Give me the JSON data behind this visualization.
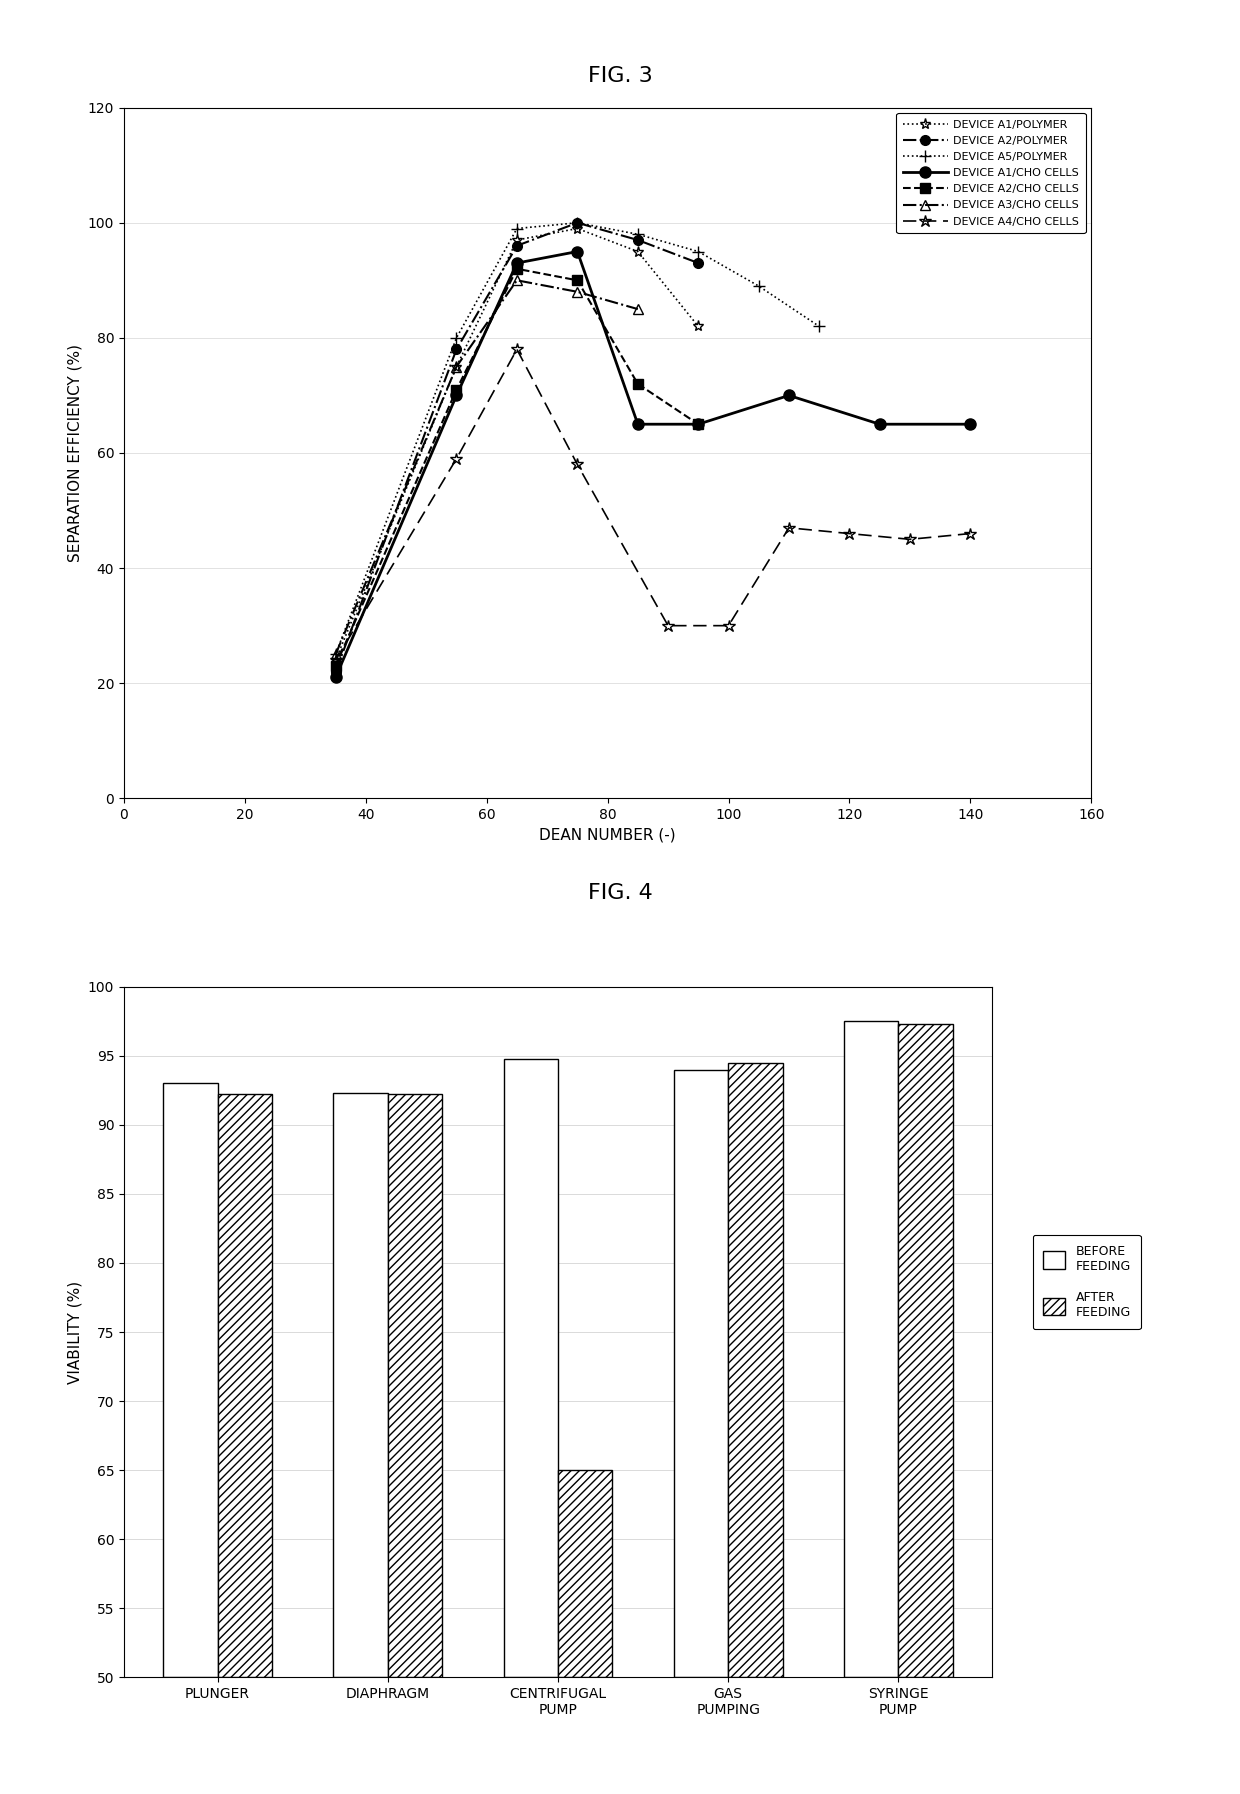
{
  "fig3_title": "FIG. 3",
  "fig4_title": "FIG. 4",
  "fig3_xlabel": "DEAN NUMBER (-)",
  "fig3_ylabel": "SEPARATION EFFICIENCY (%)",
  "fig3_xlim": [
    0,
    160
  ],
  "fig3_ylim": [
    0,
    120
  ],
  "fig3_xticks": [
    0,
    20,
    40,
    60,
    80,
    100,
    120,
    140,
    160
  ],
  "fig3_yticks": [
    0,
    20,
    40,
    60,
    80,
    100,
    120
  ],
  "series": [
    {
      "label": "DEVICE A1/POLYMER",
      "x": [
        35,
        55,
        65,
        75,
        85,
        95
      ],
      "y": [
        24,
        75,
        97,
        99,
        95,
        82
      ],
      "linestyle": "dotted",
      "marker": "*",
      "linewidth": 1.2,
      "markersize": 8,
      "markerfilled": false
    },
    {
      "label": "DEVICE A2/POLYMER",
      "x": [
        35,
        55,
        65,
        75,
        85,
        95
      ],
      "y": [
        22,
        78,
        96,
        100,
        97,
        93
      ],
      "linestyle": "dashdot",
      "marker": "o",
      "linewidth": 1.5,
      "markersize": 7,
      "markerfilled": true
    },
    {
      "label": "DEVICE A5/POLYMER",
      "x": [
        35,
        55,
        65,
        75,
        85,
        95,
        105,
        115
      ],
      "y": [
        25,
        80,
        99,
        100,
        98,
        95,
        89,
        82
      ],
      "linestyle": "dotted",
      "marker": "+",
      "linewidth": 1.2,
      "markersize": 9,
      "markerfilled": false
    },
    {
      "label": "DEVICE A1/CHO CELLS",
      "x": [
        35,
        55,
        65,
        75,
        85,
        95,
        110,
        125,
        140
      ],
      "y": [
        21,
        70,
        93,
        95,
        65,
        65,
        70,
        65,
        65
      ],
      "linestyle": "solid",
      "marker": "o",
      "linewidth": 2.0,
      "markersize": 8,
      "markerfilled": true
    },
    {
      "label": "DEVICE A2/CHO CELLS",
      "x": [
        35,
        55,
        65,
        75,
        85,
        95
      ],
      "y": [
        23,
        71,
        92,
        90,
        72,
        65
      ],
      "linestyle": "dashed",
      "marker": "s",
      "linewidth": 1.5,
      "markersize": 7,
      "markerfilled": true
    },
    {
      "label": "DEVICE A3/CHO CELLS",
      "x": [
        35,
        55,
        65,
        75,
        85
      ],
      "y": [
        25,
        75,
        90,
        88,
        85
      ],
      "linestyle": "dashdot",
      "marker": "^",
      "linewidth": 1.5,
      "markersize": 7,
      "markerfilled": false
    },
    {
      "label": "DEVICE A4/CHO CELLS",
      "x": [
        35,
        55,
        65,
        75,
        90,
        100,
        110,
        120,
        130,
        140
      ],
      "y": [
        24,
        59,
        78,
        58,
        30,
        30,
        47,
        46,
        45,
        46
      ],
      "linestyle": "loosely_dashed",
      "marker": "*",
      "linewidth": 1.2,
      "markersize": 9,
      "markerfilled": false
    }
  ],
  "fig4_ylabel": "VIABILITY (%)",
  "fig4_ylim": [
    50,
    100
  ],
  "fig4_yticks": [
    50,
    55,
    60,
    65,
    70,
    75,
    80,
    85,
    90,
    95,
    100
  ],
  "fig4_categories": [
    "PLUNGER",
    "DIAPHRAGM",
    "CENTRIFUGAL\nPUMP",
    "GAS\nPUMPING",
    "SYRINGE\nPUMP"
  ],
  "fig4_before": [
    93.0,
    92.3,
    94.8,
    94.0,
    97.5
  ],
  "fig4_after": [
    92.2,
    92.2,
    65.0,
    94.5,
    97.3
  ],
  "fig4_legend_before": "BEFORE\nFEEDING",
  "fig4_legend_after": "AFTER\nFEEDING",
  "background_color": "#ffffff",
  "text_color": "#000000"
}
